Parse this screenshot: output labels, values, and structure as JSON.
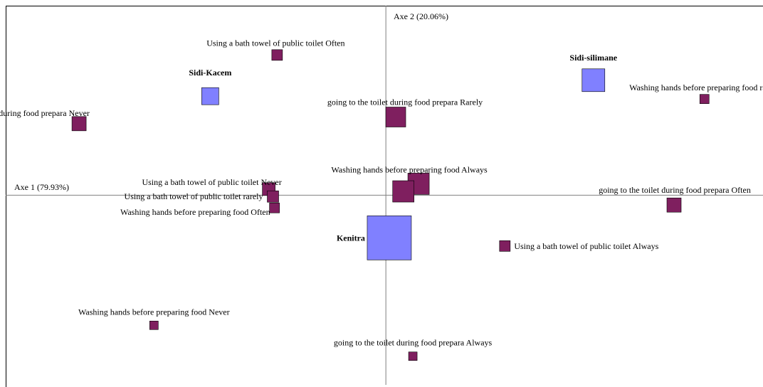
{
  "chart_data": {
    "type": "scatter",
    "xlabel": "Axe 1 (79.93%)",
    "ylabel": "Axe 2 (20.06%)",
    "xlim": [
      -1.0,
      0.992
    ],
    "ylim": [
      -1.0,
      0.999
    ],
    "colors": {
      "group": "#8080ff",
      "modality": "#7f1f5f",
      "axis": "#808080"
    },
    "points": [
      {
        "label": "Sidi-Kacem",
        "kind": "group",
        "x": -0.462,
        "y": 0.522,
        "size": 24,
        "bold": true
      },
      {
        "label": "Sidi-silimane",
        "kind": "group",
        "x": 0.546,
        "y": 0.606,
        "size": 32,
        "bold": true
      },
      {
        "label": "Kenitra",
        "kind": "group",
        "x": 0.009,
        "y": -0.225,
        "size": 62,
        "bold": true
      },
      {
        "label": "Using a bath towel of public toilet Often",
        "kind": "modality",
        "x": -0.286,
        "y": 0.739,
        "size": 15
      },
      {
        "label": "Washing hands before preparing food rarely",
        "kind": "modality",
        "x": 0.838,
        "y": 0.507,
        "size": 13
      },
      {
        "label": "going to the toilet during  food prepara Never",
        "kind": "modality",
        "x": -0.807,
        "y": 0.377,
        "size": 20
      },
      {
        "label": "going to the toilet during  food prepara Rarely",
        "kind": "modality",
        "x": 0.026,
        "y": 0.412,
        "size": 28
      },
      {
        "label": "Washing hands before preparing food Always",
        "kind": "modality",
        "x": 0.086,
        "y": 0.06,
        "size": 30
      },
      {
        "label": "Using a bath towel of public toilet Never",
        "kind": "modality",
        "x": -0.308,
        "y": 0.032,
        "size": 18
      },
      {
        "label": "going to the toilet during  food prepara Often",
        "kind": "modality",
        "x": 0.758,
        "y": -0.052,
        "size": 20
      },
      {
        "label": "Using a bath towel of public toilet rarely",
        "kind": "modality",
        "x": -0.297,
        "y": -0.007,
        "size": 16
      },
      {
        "label": "Washing hands before preparing food Often",
        "kind": "modality",
        "x": -0.293,
        "y": -0.067,
        "size": 14
      },
      {
        "label": "Using a bath towel of public toilet Always",
        "kind": "modality",
        "x": 0.313,
        "y": -0.268,
        "size": 15
      },
      {
        "label": "Washing hands before preparing food Never",
        "kind": "modality",
        "x": -0.61,
        "y": -0.686,
        "size": 12
      },
      {
        "label": "going to the toilet during  food prepara Always",
        "kind": "modality",
        "x": 0.071,
        "y": -0.849,
        "size": 12
      },
      {
        "label": "",
        "kind": "modality",
        "x": 0.046,
        "y": 0.02,
        "size": 30
      }
    ]
  }
}
